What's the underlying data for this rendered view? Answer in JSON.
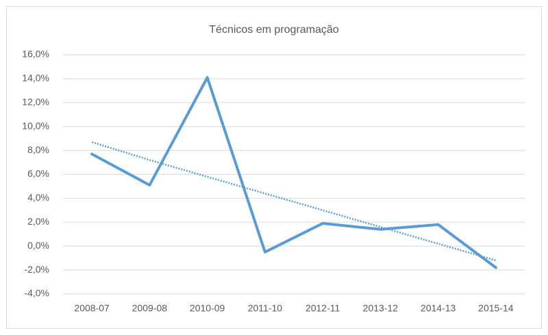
{
  "chart_data": {
    "type": "line",
    "title": "Técnicos em programação",
    "categories": [
      "2008-07",
      "2009-08",
      "2010-09",
      "2011-10",
      "2012-11",
      "2013-12",
      "2014-13",
      "2015-14"
    ],
    "series": [
      {
        "color": "#5b9bd5",
        "values": [
          7.7,
          5.1,
          14.1,
          -0.5,
          1.9,
          1.4,
          1.8,
          -1.8
        ]
      }
    ],
    "trendline": {
      "color": "#5b9bd5",
      "style": "dotted",
      "values": [
        8.7,
        7.2,
        5.8,
        4.4,
        3.0,
        1.6,
        0.2,
        -1.2
      ]
    },
    "ylim": [
      -4,
      16
    ],
    "yticks": [
      {
        "value": -4,
        "label": "-4,0%"
      },
      {
        "value": -2,
        "label": "-2,0%"
      },
      {
        "value": 0,
        "label": "0,0%"
      },
      {
        "value": 2,
        "label": "2,0%"
      },
      {
        "value": 4,
        "label": "4,0%"
      },
      {
        "value": 6,
        "label": "6,0%"
      },
      {
        "value": 8,
        "label": "8,0%"
      },
      {
        "value": 10,
        "label": "10,0%"
      },
      {
        "value": 12,
        "label": "12,0%"
      },
      {
        "value": 14,
        "label": "14,0%"
      },
      {
        "value": 16,
        "label": "16,0%"
      }
    ],
    "grid": true
  }
}
